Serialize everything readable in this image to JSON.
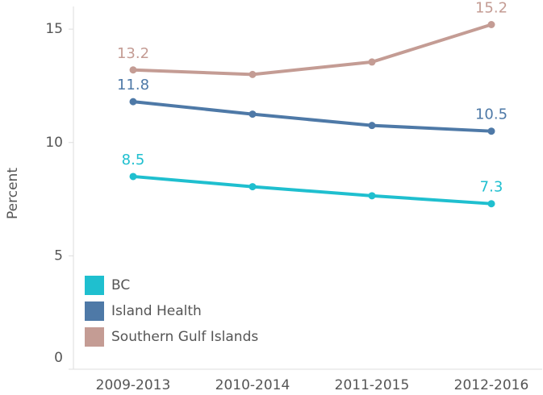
{
  "chart_data": {
    "type": "line",
    "y_label": "Percent",
    "categories": [
      "2009-2013",
      "2010-2014",
      "2011-2015",
      "2012-2016"
    ],
    "series": [
      {
        "name": "BC",
        "color": "#1fbfcf",
        "values": [
          8.5,
          8.05,
          7.65,
          7.3
        ],
        "value_labels": [
          "8.5",
          null,
          null,
          "7.3"
        ]
      },
      {
        "name": "Island Health",
        "color": "#4e79a7",
        "values": [
          11.8,
          11.25,
          10.75,
          10.5
        ],
        "value_labels": [
          "11.8",
          null,
          null,
          "10.5"
        ]
      },
      {
        "name": "Southern Gulf Islands",
        "color": "#c49c94",
        "values": [
          13.2,
          13.0,
          13.55,
          15.2
        ],
        "value_labels": [
          "13.2",
          null,
          null,
          "15.2"
        ]
      }
    ],
    "ylim": [
      0,
      16
    ],
    "yticks": [
      0,
      5,
      10,
      15
    ],
    "grid": false,
    "legend": "lower left"
  }
}
